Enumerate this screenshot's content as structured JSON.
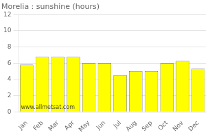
{
  "chart_data": {
    "type": "bar",
    "title": "Morelia : sunshine (hours)",
    "categories": [
      "Jan",
      "Feb",
      "Mar",
      "Apr",
      "May",
      "Jun",
      "Jul",
      "Aug",
      "Sep",
      "Oct",
      "Nov",
      "Dec"
    ],
    "values": [
      5.8,
      6.8,
      6.8,
      6.8,
      6.0,
      6.0,
      4.5,
      5.0,
      5.0,
      6.0,
      6.3,
      5.3
    ],
    "color": "#FFFF00",
    "ylim": [
      0,
      12
    ],
    "yticks": [
      0,
      2,
      4,
      6,
      8,
      10,
      12
    ],
    "grid": true,
    "annotations": [
      "www.allmetsat.com"
    ]
  }
}
